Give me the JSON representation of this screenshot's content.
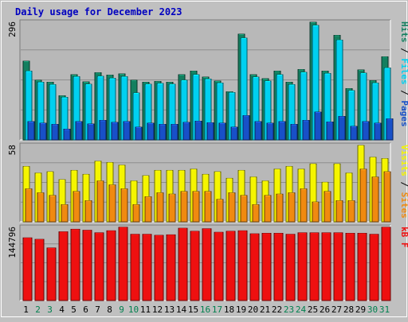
{
  "chart_data": {
    "type": "bar",
    "title": "Daily usage for December 2023",
    "categories": [
      "1",
      "2",
      "3",
      "4",
      "5",
      "6",
      "7",
      "8",
      "9",
      "10",
      "11",
      "12",
      "13",
      "14",
      "15",
      "16",
      "17",
      "18",
      "19",
      "20",
      "21",
      "22",
      "23",
      "24",
      "25",
      "26",
      "27",
      "28",
      "29",
      "30",
      "31"
    ],
    "weekend_days": [
      "2",
      "3",
      "9",
      "10",
      "16",
      "17",
      "23",
      "24",
      "30",
      "31"
    ],
    "panels": [
      {
        "id": "traffic-hits",
        "ylabel_parts": [
          "Pages",
          "Files",
          "Hits"
        ],
        "ylabel_separator": " / ",
        "max_label": "296",
        "ylim": [
          0,
          296
        ],
        "series": [
          {
            "name": "Hits",
            "color": "#137f5f",
            "values": [
              198,
              150,
              145,
              111,
              164,
              146,
              169,
              163,
              166,
              150,
              145,
              147,
              145,
              164,
              173,
              158,
              148,
              121,
              266,
              164,
              154,
              173,
              145,
              177,
              296,
              173,
              263,
              129,
              176,
              149,
              209
            ]
          },
          {
            "name": "Files",
            "color": "#00d0f0",
            "values": [
              173,
              145,
              139,
              107,
              159,
              140,
              160,
              155,
              159,
              118,
              140,
              142,
              140,
              150,
              164,
              153,
              143,
              119,
              256,
              158,
              148,
              164,
              139,
              170,
              288,
              167,
              251,
              124,
              168,
              143,
              181
            ]
          },
          {
            "name": "Pages",
            "color": "#1850c8",
            "values": [
              46,
              42,
              39,
              27,
              46,
              40,
              49,
              44,
              46,
              32,
              42,
              39,
              39,
              44,
              47,
              43,
              42,
              32,
              61,
              46,
              42,
              46,
              39,
              49,
              70,
              45,
              59,
              34,
              46,
              42,
              53
            ]
          }
        ]
      },
      {
        "id": "traffic-visits",
        "ylabel_parts": [
          "Sites",
          "Visits"
        ],
        "ylabel_separator": " / ",
        "max_label": "58",
        "ylim": [
          0,
          58
        ],
        "series": [
          {
            "name": "Visits",
            "color": "#f5f500",
            "values": [
              42,
              37,
              38,
              32,
              39,
              36,
              46,
              45,
              43,
              31,
              35,
              39,
              39,
              39,
              40,
              36,
              38,
              33,
              39,
              34,
              31,
              40,
              42,
              40,
              44,
              30,
              44,
              37,
              58,
              49,
              48
            ]
          },
          {
            "name": "Sites",
            "color": "#f08a10",
            "values": [
              25,
              22,
              20,
              13,
              23,
              16,
              31,
              28,
              25,
              13,
              19,
              22,
              21,
              23,
              23,
              23,
              17,
              22,
              20,
              13,
              20,
              21,
              22,
              25,
              15,
              23,
              16,
              16,
              40,
              34,
              38
            ]
          }
        ]
      },
      {
        "id": "traffic-kbytes",
        "ylabel_parts": [
          "KBytes"
        ],
        "ylabel_text": "kB F",
        "ylabel_separator": "",
        "max_label": "144796",
        "ylim": [
          0,
          144796
        ],
        "series": [
          {
            "name": "KBytes",
            "color": "#ee1010",
            "values": [
              124000,
              121000,
              104000,
              136000,
              141000,
              139000,
              134000,
              138000,
              145000,
              131000,
              131000,
              129000,
              130000,
              143000,
              137000,
              142000,
              135000,
              137000,
              138000,
              132000,
              133000,
              133000,
              131000,
              134000,
              134000,
              134000,
              134000,
              133000,
              133000,
              131000,
              145000
            ]
          }
        ]
      }
    ],
    "grid": true,
    "legend": "right"
  },
  "colors": {
    "page_bg": "#c0c0c0",
    "plot_bg": "#b8b8b8",
    "title_color": "#0000c0",
    "grid_color": "#8e8e8e",
    "weekday_label": "#000000",
    "weekend_label": "#00804f"
  }
}
